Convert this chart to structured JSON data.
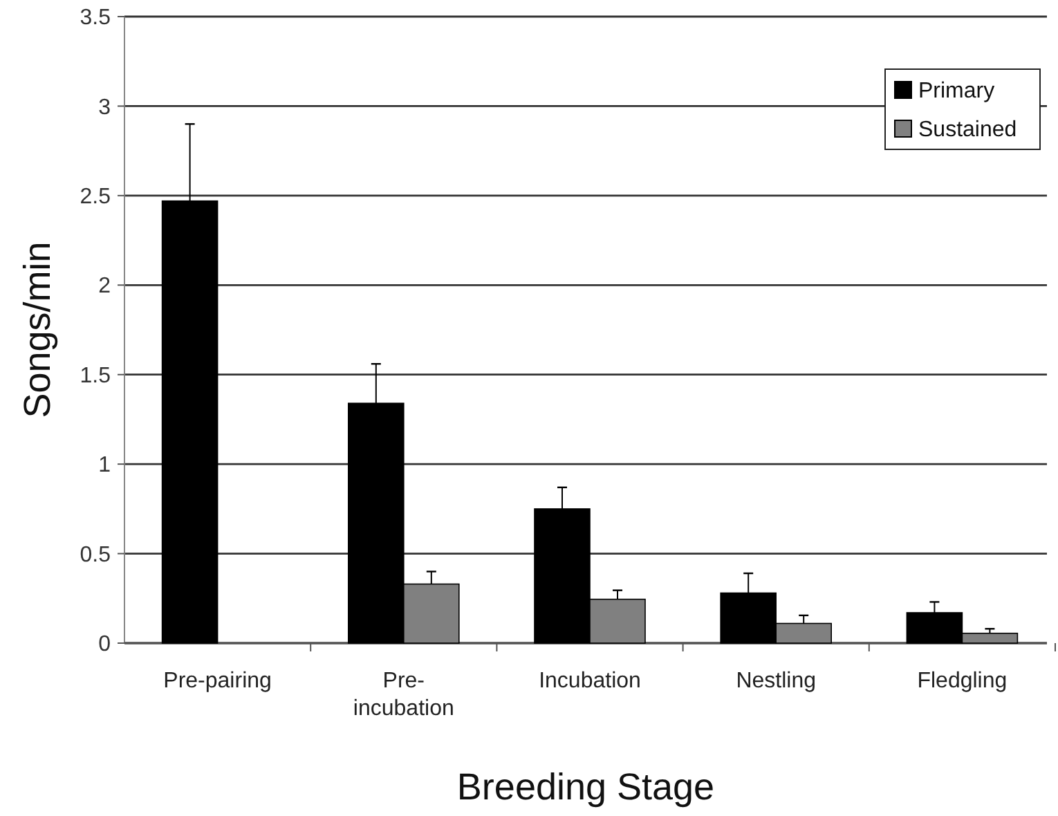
{
  "chart_data": {
    "type": "bar",
    "xlabel": "Breeding Stage",
    "ylabel": "Songs/min",
    "categories": [
      "Pre-pairing",
      "Pre-\nincubation",
      "Incubation",
      "Nestling",
      "Fledgling"
    ],
    "series": [
      {
        "name": "Primary",
        "color": "#000000",
        "values": [
          2.47,
          1.34,
          0.75,
          0.28,
          0.17
        ],
        "errors": [
          0.43,
          0.22,
          0.12,
          0.11,
          0.06
        ]
      },
      {
        "name": "Sustained",
        "color": "#808080",
        "values": [
          0,
          0.33,
          0.245,
          0.11,
          0.055
        ],
        "errors": [
          null,
          0.07,
          0.05,
          0.045,
          0.025
        ]
      }
    ],
    "ylim": [
      0,
      3.5
    ],
    "yticks": [
      0,
      0.5,
      1,
      1.5,
      2,
      2.5,
      3,
      3.5
    ],
    "grid": "y",
    "legend": "top right"
  }
}
